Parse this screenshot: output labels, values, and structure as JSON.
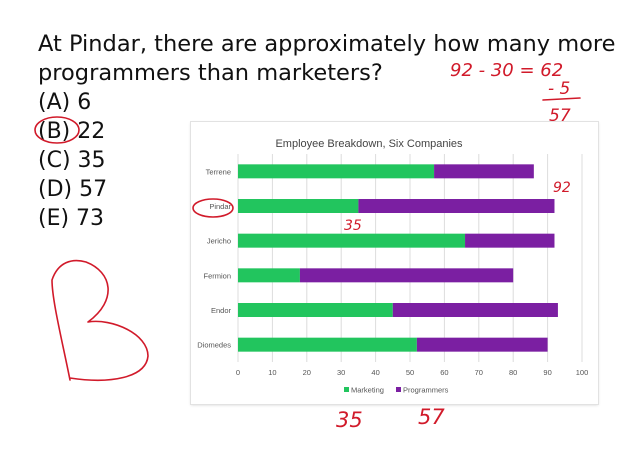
{
  "question": {
    "line1": "At Pindar, there are approximately how many more",
    "line2": "programmers than marketers?"
  },
  "choices": [
    {
      "label": "(A) 6"
    },
    {
      "label": "(B) 22"
    },
    {
      "label": "(C) 35"
    },
    {
      "label": "(D) 57"
    },
    {
      "label": "(E) 73"
    }
  ],
  "annotations": {
    "calc_line1": "92 - 30 = 62",
    "calc_minus": "- 5",
    "calc_result": "57",
    "pindar_total": "92",
    "pindar_marketing": "35",
    "bottom_left": "35",
    "bottom_right": "57",
    "big_letter": "B",
    "ink_color": "#d11a2a"
  },
  "chart_data": {
    "type": "bar",
    "orientation": "horizontal",
    "stacked": true,
    "title": "Employee Breakdown, Six Companies",
    "categories": [
      "Terrene",
      "Pindar",
      "Jericho",
      "Fermion",
      "Endor",
      "Diomedes"
    ],
    "series": [
      {
        "name": "Marketing",
        "values": [
          57,
          35,
          66,
          18,
          45,
          52
        ],
        "color": "#22c55e"
      },
      {
        "name": "Programmers",
        "values": [
          29,
          57,
          26,
          62,
          48,
          38
        ],
        "color": "#7b1fa2"
      }
    ],
    "xlim": [
      0,
      100
    ],
    "xticks": [
      0,
      10,
      20,
      30,
      40,
      50,
      60,
      70,
      80,
      90,
      100
    ],
    "grid": true,
    "legend": "bottom"
  }
}
